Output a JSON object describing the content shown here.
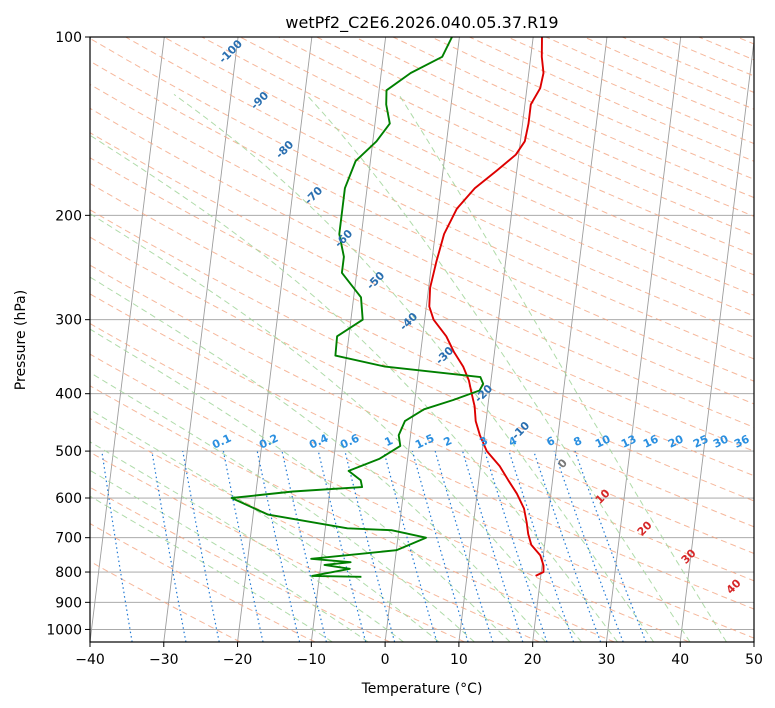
{
  "chart_data": {
    "type": "line",
    "title": "wetPf2_C2E6.2026.040.05.37.R19",
    "xlabel": "Temperature (°C)",
    "ylabel": "Pressure (hPa)",
    "xlim": [
      -40,
      50
    ],
    "ylim": [
      1050,
      100
    ],
    "y_scale": "log",
    "grid": true,
    "x_ticks": [
      "−40",
      "−30",
      "−20",
      "−10",
      "0",
      "10",
      "20",
      "30",
      "40",
      "50"
    ],
    "y_ticks": [
      "100",
      "200",
      "300",
      "400",
      "500",
      "600",
      "700",
      "800",
      "900",
      "1000"
    ],
    "series": [
      {
        "color": "#dd0000",
        "points": [
          [
            19.3,
            812
          ],
          [
            20.3,
            800
          ],
          [
            20.2,
            780
          ],
          [
            19.6,
            750
          ],
          [
            18.2,
            720
          ],
          [
            17.6,
            690
          ],
          [
            17.2,
            660
          ],
          [
            16.6,
            625
          ],
          [
            15.4,
            590
          ],
          [
            14.0,
            560
          ],
          [
            12.6,
            530
          ],
          [
            10.6,
            500
          ],
          [
            9.4,
            470
          ],
          [
            8.6,
            445
          ],
          [
            8.2,
            420
          ],
          [
            7.6,
            400
          ],
          [
            7.0,
            380
          ],
          [
            6.0,
            360
          ],
          [
            4.5,
            340
          ],
          [
            3.2,
            320
          ],
          [
            1.2,
            300
          ],
          [
            0.4,
            285
          ],
          [
            0.2,
            265
          ],
          [
            0.6,
            240
          ],
          [
            1.2,
            215
          ],
          [
            2.5,
            195
          ],
          [
            4.6,
            180
          ],
          [
            7.3,
            168
          ],
          [
            9.6,
            158
          ],
          [
            10.6,
            150
          ],
          [
            10.8,
            140
          ],
          [
            10.8,
            130
          ],
          [
            11.8,
            122
          ],
          [
            12.0,
            115
          ],
          [
            11.5,
            108
          ],
          [
            11.2,
            100
          ]
        ]
      },
      {
        "color": "#008000",
        "points": [
          [
            -4.3,
            815
          ],
          [
            -11.0,
            812
          ],
          [
            -6.0,
            790
          ],
          [
            -9.5,
            778
          ],
          [
            -6.0,
            770
          ],
          [
            -11.4,
            760
          ],
          [
            0.0,
            735
          ],
          [
            3.8,
            700
          ],
          [
            -1.0,
            680
          ],
          [
            -7.0,
            675
          ],
          [
            -18.0,
            640
          ],
          [
            -23.2,
            600
          ],
          [
            -15.0,
            585
          ],
          [
            -5.7,
            575
          ],
          [
            -6.0,
            560
          ],
          [
            -7.8,
            540
          ],
          [
            -3.8,
            515
          ],
          [
            -1.2,
            490
          ],
          [
            -1.6,
            470
          ],
          [
            -1.0,
            445
          ],
          [
            1.4,
            425
          ],
          [
            5.2,
            410
          ],
          [
            8.6,
            395
          ],
          [
            9.0,
            385
          ],
          [
            8.5,
            375
          ],
          [
            -4.6,
            360
          ],
          [
            -11.5,
            345
          ],
          [
            -11.6,
            320
          ],
          [
            -8.4,
            300
          ],
          [
            -9.0,
            275
          ],
          [
            -12.0,
            250
          ],
          [
            -12.0,
            235
          ],
          [
            -13.0,
            215
          ],
          [
            -13.0,
            195
          ],
          [
            -13.0,
            180
          ],
          [
            -12.0,
            162
          ],
          [
            -9.5,
            150
          ],
          [
            -8.0,
            140
          ],
          [
            -8.8,
            130
          ],
          [
            -9.0,
            123
          ],
          [
            -6.0,
            115
          ],
          [
            -2.0,
            108
          ],
          [
            -1.0,
            100
          ]
        ]
      }
    ],
    "dry_adiabat_labels": [
      "-100",
      "-90",
      "-80",
      "-70",
      "-60",
      "-50",
      "-40",
      "-30",
      "-20",
      "-10"
    ],
    "moist_adiabat_labels": [
      "0",
      "10",
      "20",
      "30",
      "40"
    ],
    "mixing_ratio_labels": [
      "0.1",
      "0.2",
      "0.4",
      "0.6",
      "1",
      "1.5",
      "2",
      "3",
      "4",
      "6",
      "8",
      "10",
      "13",
      "16",
      "20",
      "25",
      "30",
      "36"
    ],
    "colors": {
      "isotherm": "#9e9e9e",
      "dry_adiabat": "#f4a582",
      "moist_adiabat": "#a6d7a0",
      "mixing_ratio": "#1f78d4",
      "dry_label": "#2a6fb0",
      "moist_label": "#d62728",
      "mixing_label": "#2a8fe0"
    }
  }
}
